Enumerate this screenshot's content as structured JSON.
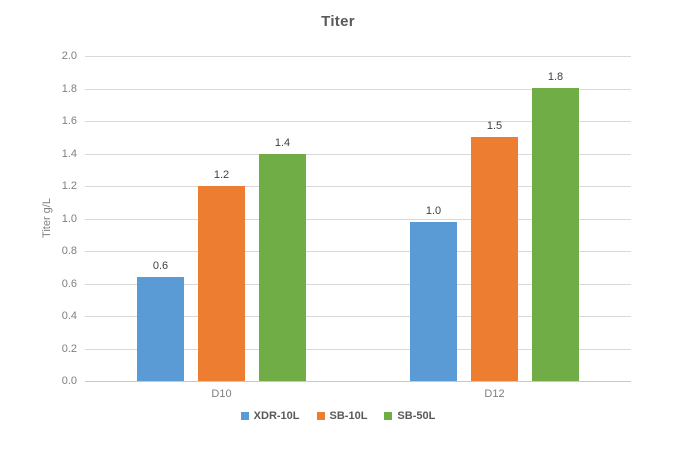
{
  "chart_data": {
    "type": "bar",
    "title": "Titer",
    "ylabel": "Titer g/L",
    "xlabel": "",
    "categories": [
      "D10",
      "D12"
    ],
    "series": [
      {
        "name": "XDR-10L",
        "color": "#5B9BD5",
        "values": [
          0.64,
          0.98
        ],
        "point_labels": [
          "0.6",
          "1.0"
        ]
      },
      {
        "name": "SB-10L",
        "color": "#ED7D31",
        "values": [
          1.2,
          1.5
        ],
        "point_labels": [
          "1.2",
          "1.5"
        ]
      },
      {
        "name": "SB-50L",
        "color": "#70AD47",
        "values": [
          1.4,
          1.8
        ],
        "point_labels": [
          "1.4",
          "1.8"
        ]
      }
    ],
    "ylim": [
      0.0,
      2.0
    ],
    "ytick_step": 0.2,
    "ytick_labels": [
      "0.0",
      "0.2",
      "0.4",
      "0.6",
      "0.8",
      "1.0",
      "1.2",
      "1.4",
      "1.6",
      "1.8",
      "2.0"
    ],
    "grid": true,
    "data_labels": true,
    "legend_position": "bottom"
  },
  "colors": {
    "background": "#FFFFFF",
    "title_text": "#595959",
    "axis_text": "#7F7F7F",
    "data_label_text": "#404040",
    "gridline": "#D9D9D9",
    "axis_line": "#C8C8C8"
  }
}
